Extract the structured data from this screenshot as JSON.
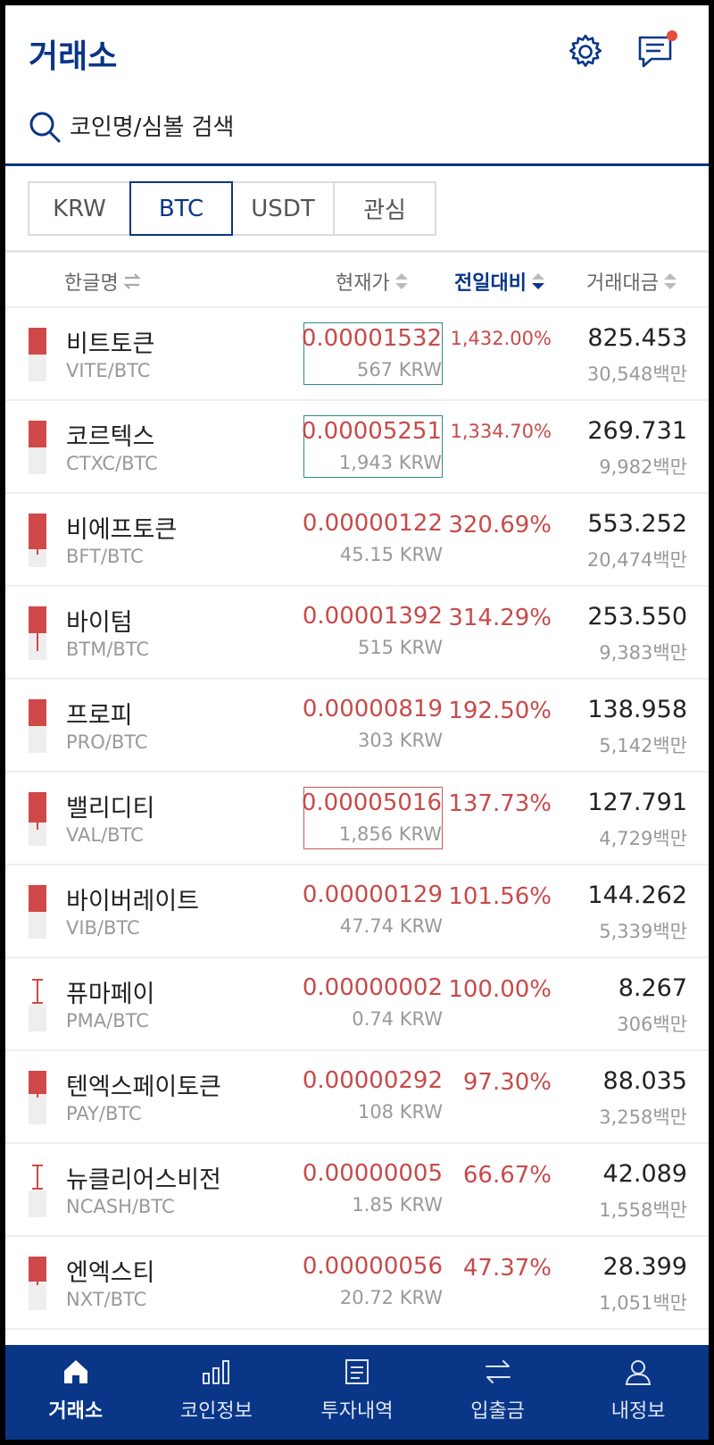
{
  "header": {
    "title": "거래소",
    "settings_icon": "gear-icon",
    "messages_icon": "chat-icon",
    "notification_color": "#e74c3c"
  },
  "search": {
    "placeholder": "코인명/심볼 검색",
    "value": ""
  },
  "tabs": [
    {
      "label": "KRW",
      "active": false
    },
    {
      "label": "BTC",
      "active": true
    },
    {
      "label": "USDT",
      "active": false
    },
    {
      "label": "관심",
      "active": false
    }
  ],
  "columns": {
    "name": "한글명",
    "price": "현재가",
    "change": "전일대비",
    "volume": "거래대금"
  },
  "coins": [
    {
      "name": "비트토큰",
      "symbol": "VITE/BTC",
      "price": "0.00001532",
      "krw": "567 KRW",
      "change": "1,432.00%",
      "volume": "825.453",
      "volume_krw": "30,548백만"
    },
    {
      "name": "코르텍스",
      "symbol": "CTXC/BTC",
      "price": "0.00005251",
      "krw": "1,943 KRW",
      "change": "1,334.70%",
      "volume": "269.731",
      "volume_krw": "9,982백만"
    },
    {
      "name": "비에프토큰",
      "symbol": "BFT/BTC",
      "price": "0.00000122",
      "krw": "45.15 KRW",
      "change": "320.69%",
      "volume": "553.252",
      "volume_krw": "20,474백만"
    },
    {
      "name": "바이텀",
      "symbol": "BTM/BTC",
      "price": "0.00001392",
      "krw": "515 KRW",
      "change": "314.29%",
      "volume": "253.550",
      "volume_krw": "9,383백만"
    },
    {
      "name": "프로피",
      "symbol": "PRO/BTC",
      "price": "0.00000819",
      "krw": "303 KRW",
      "change": "192.50%",
      "volume": "138.958",
      "volume_krw": "5,142백만"
    },
    {
      "name": "밸리디티",
      "symbol": "VAL/BTC",
      "price": "0.00005016",
      "krw": "1,856 KRW",
      "change": "137.73%",
      "volume": "127.791",
      "volume_krw": "4,729백만"
    },
    {
      "name": "바이버레이트",
      "symbol": "VIB/BTC",
      "price": "0.00000129",
      "krw": "47.74 KRW",
      "change": "101.56%",
      "volume": "144.262",
      "volume_krw": "5,339백만"
    },
    {
      "name": "퓨마페이",
      "symbol": "PMA/BTC",
      "price": "0.00000002",
      "krw": "0.74 KRW",
      "change": "100.00%",
      "volume": "8.267",
      "volume_krw": "306백만"
    },
    {
      "name": "텐엑스페이토큰",
      "symbol": "PAY/BTC",
      "price": "0.00000292",
      "krw": "108 KRW",
      "change": "97.30%",
      "volume": "88.035",
      "volume_krw": "3,258백만"
    },
    {
      "name": "뉴클리어스비전",
      "symbol": "NCASH/BTC",
      "price": "0.00000005",
      "krw": "1.85 KRW",
      "change": "66.67%",
      "volume": "42.089",
      "volume_krw": "1,558백만"
    },
    {
      "name": "엔엑스티",
      "symbol": "NXT/BTC",
      "price": "0.00000056",
      "krw": "20.72 KRW",
      "change": "47.37%",
      "volume": "28.399",
      "volume_krw": "1,051백만"
    }
  ],
  "bottom_nav": [
    {
      "label": "거래소",
      "icon": "home-icon",
      "active": true
    },
    {
      "label": "코인정보",
      "icon": "bar-chart-icon",
      "active": false
    },
    {
      "label": "투자내역",
      "icon": "document-icon",
      "active": false
    },
    {
      "label": "입출금",
      "icon": "transfer-icon",
      "active": false
    },
    {
      "label": "내정보",
      "icon": "user-icon",
      "active": false
    }
  ],
  "colors": {
    "brand": "#093687",
    "rise": "#c84a4a",
    "candle": "#d04848"
  }
}
